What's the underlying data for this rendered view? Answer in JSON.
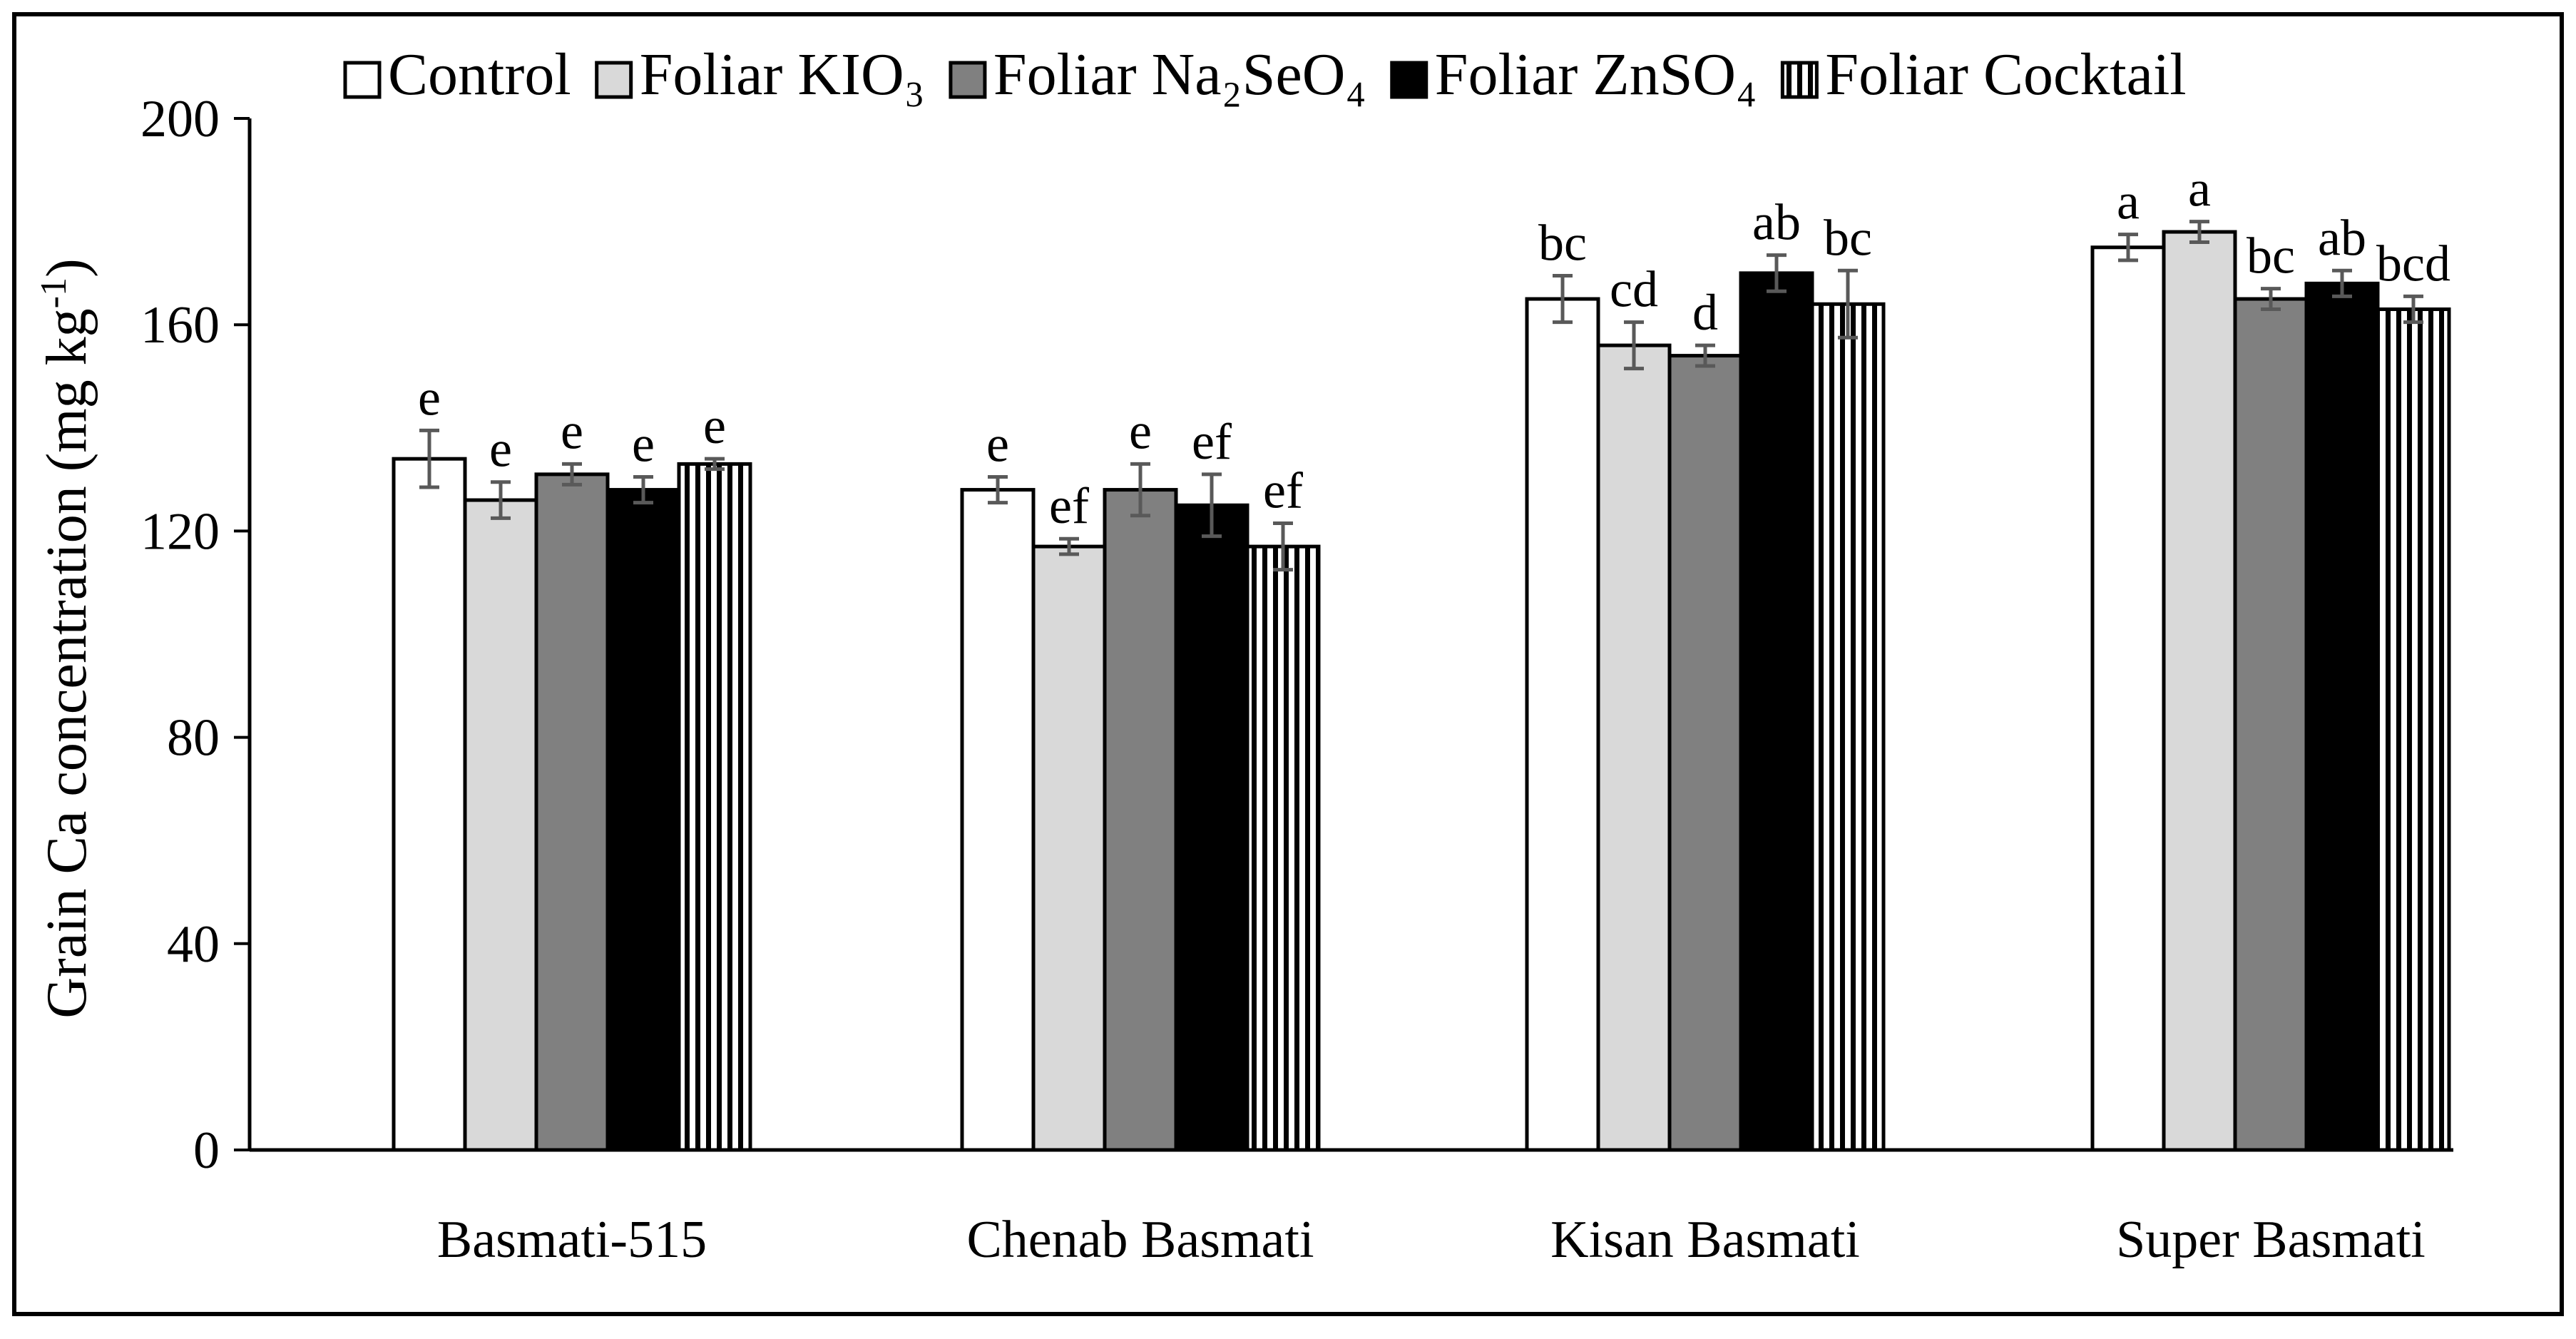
{
  "chart_data": {
    "type": "bar",
    "title": "",
    "xlabel": "",
    "ylabel": "Grain Ca concentration (mg kg",
    "ylabel_sup": "-1",
    "ylabel_close": ")",
    "ylim": [
      0,
      200
    ],
    "yticks": [
      0,
      40,
      80,
      120,
      160,
      200
    ],
    "ytick_labels": [
      "0",
      "40",
      "80",
      "120",
      "160",
      "200"
    ],
    "grid": false,
    "legend_position": "top",
    "categories": [
      "Basmati-515",
      "Chenab Basmati",
      "Kisan Basmati",
      "Super Basmati"
    ],
    "series": [
      {
        "name": "Control",
        "fill": "white",
        "values": [
          134,
          128,
          165,
          175
        ],
        "errors": [
          5.5,
          2.5,
          4.5,
          2.5
        ],
        "letters": [
          "e",
          "e",
          "bc",
          "a"
        ]
      },
      {
        "name": "Foliar KIO₃",
        "fill": "lightgray",
        "values": [
          126,
          117,
          156,
          178
        ],
        "errors": [
          3.5,
          1.5,
          4.5,
          2
        ],
        "letters": [
          "e",
          "ef",
          "cd",
          "a"
        ]
      },
      {
        "name": "Foliar Na₂SeO₄",
        "fill": "gray",
        "values": [
          131,
          128,
          154,
          165
        ],
        "errors": [
          2,
          5,
          2,
          2
        ],
        "letters": [
          "e",
          "e",
          "d",
          "bc"
        ]
      },
      {
        "name": "Foliar ZnSO₄",
        "fill": "black",
        "values": [
          128,
          125,
          170,
          168
        ],
        "errors": [
          2.5,
          6,
          3.5,
          2.5
        ],
        "letters": [
          "e",
          "ef",
          "ab",
          "ab"
        ]
      },
      {
        "name": "Foliar Cocktail",
        "fill": "vstripes",
        "values": [
          133,
          117,
          164,
          163
        ],
        "errors": [
          1,
          4.5,
          6.5,
          2.5
        ],
        "letters": [
          "e",
          "ef",
          "bc",
          "bcd"
        ]
      }
    ],
    "colors": {
      "white": "#ffffff",
      "lightgray": "#d9d9d9",
      "gray": "#808080",
      "black": "#000000",
      "stripe": "#000000",
      "errorbar": "#595959",
      "axis": "#000000"
    }
  }
}
